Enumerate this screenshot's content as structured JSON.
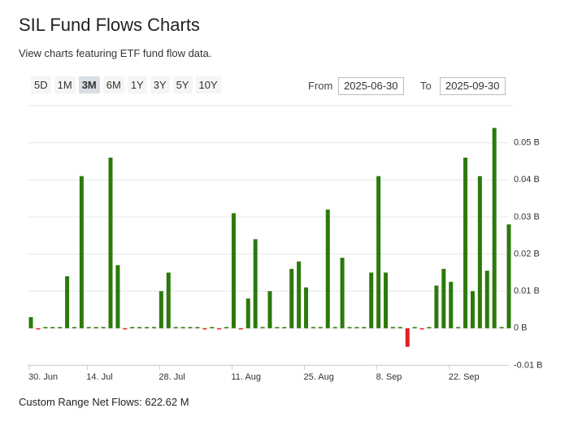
{
  "header": {
    "title": "SIL Fund Flows Charts",
    "subtitle": "View charts featuring ETF fund flow data."
  },
  "controls": {
    "ranges": [
      "5D",
      "1M",
      "3M",
      "6M",
      "1Y",
      "3Y",
      "5Y",
      "10Y"
    ],
    "active_range": "3M",
    "from_label": "From",
    "from_value": "2025-06-30",
    "to_label": "To",
    "to_value": "2025-09-30"
  },
  "chart_data": {
    "type": "bar",
    "categories": [
      "30. Jun",
      null,
      null,
      null,
      null,
      null,
      null,
      null,
      "14. Jul",
      null,
      null,
      null,
      null,
      null,
      null,
      null,
      null,
      null,
      "28. Jul",
      null,
      null,
      null,
      null,
      null,
      null,
      null,
      null,
      null,
      "11. Aug",
      null,
      null,
      null,
      null,
      null,
      null,
      null,
      null,
      null,
      "25. Aug",
      null,
      null,
      null,
      null,
      null,
      null,
      null,
      null,
      null,
      "8. Sep",
      null,
      null,
      null,
      null,
      null,
      null,
      null,
      null,
      null,
      "22. Sep",
      null,
      null,
      null,
      null,
      null,
      null,
      null,
      null
    ],
    "values": [
      0.003,
      -0.0003,
      0.0003,
      0,
      0,
      0.014,
      0.0003,
      0.041,
      0,
      0.0002,
      0,
      0.046,
      0.017,
      -0.0002,
      0.0002,
      0.0002,
      0.0002,
      0.0002,
      0.01,
      0.015,
      0,
      0.0003,
      0,
      0.0002,
      -0.0002,
      0.0003,
      -0.0002,
      0,
      0.031,
      -0.0003,
      0.008,
      0.024,
      0.0002,
      0.01,
      0.0002,
      0.0002,
      0.016,
      0.018,
      0.011,
      0,
      0.0003,
      0.032,
      0,
      0.019,
      0.0002,
      0,
      0,
      0.015,
      0.041,
      0.015,
      0,
      0.0002,
      -0.005,
      0.0002,
      -0.0002,
      0.0002,
      0.0115,
      0.016,
      0.0125,
      0.0003,
      0.046,
      0.01,
      0.041,
      0.0155,
      0.054,
      0.0003,
      0.028
    ],
    "positive_color": "#2b7a0b",
    "negative_color": "#e02020",
    "ylim": [
      -0.011,
      0.06
    ],
    "yticks": [
      {
        "value": -0.01,
        "label": "-0.01 B"
      },
      {
        "value": 0,
        "label": "0 B"
      },
      {
        "value": 0.01,
        "label": "0.01 B"
      },
      {
        "value": 0.02,
        "label": "0.02 B"
      },
      {
        "value": 0.03,
        "label": "0.03 B"
      },
      {
        "value": 0.04,
        "label": "0.04 B"
      },
      {
        "value": 0.05,
        "label": "0.05 B"
      }
    ],
    "y_axis_side": "right",
    "grid": true
  },
  "footer": {
    "label": "Custom Range Net Flows:",
    "value": "622.62 M"
  }
}
